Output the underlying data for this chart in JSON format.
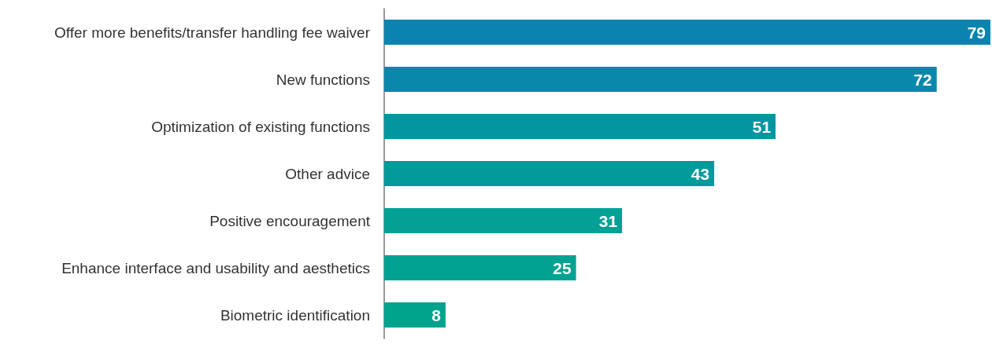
{
  "chart_data": {
    "type": "bar",
    "orientation": "horizontal",
    "categories": [
      "Offer more benefits/transfer handling fee waiver",
      "New functions",
      "Optimization of existing functions",
      "Other advice",
      "Positive encouragement",
      "Enhance interface and usability and aesthetics",
      "Biometric identification"
    ],
    "values": [
      79,
      72,
      51,
      43,
      31,
      25,
      8
    ],
    "colors": [
      "#0a84ae",
      "#0988ac",
      "#0396a0",
      "#029a9a",
      "#02a095",
      "#02a292",
      "#00a38c"
    ],
    "data_labels": true
  }
}
